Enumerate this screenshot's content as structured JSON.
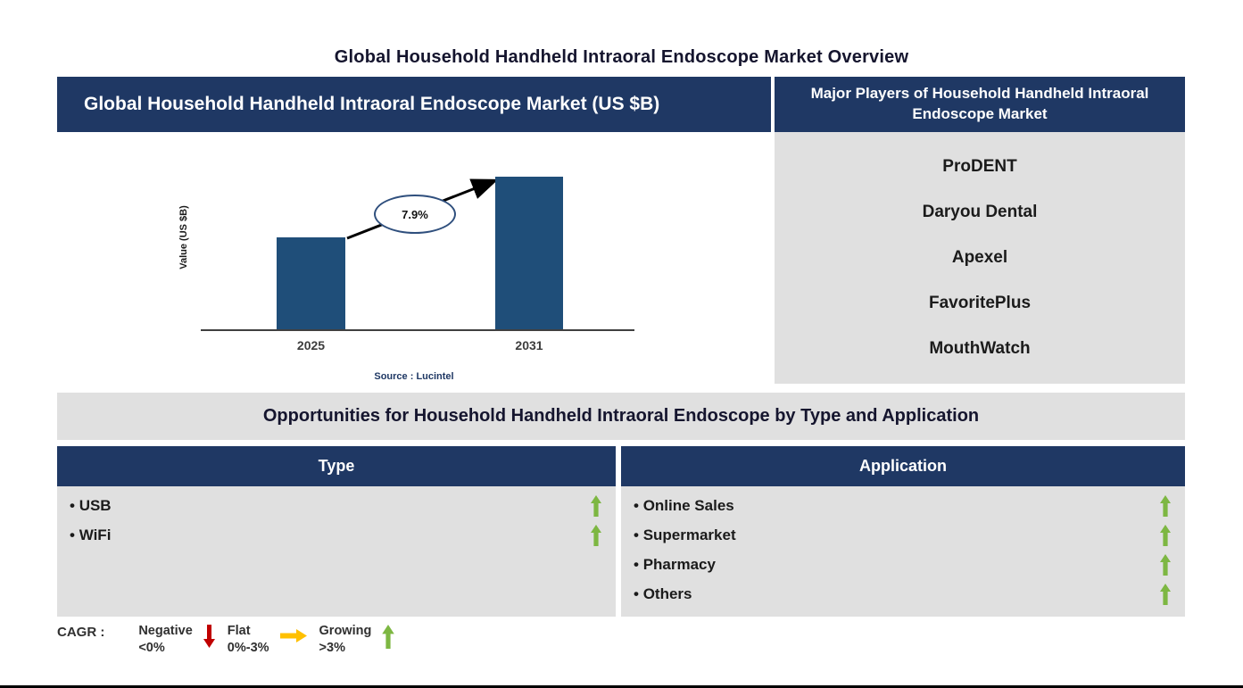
{
  "page": {
    "title": "Global Household Handheld Intraoral Endoscope Market Overview"
  },
  "market_chart": {
    "header": "Global Household Handheld Intraoral Endoscope Market (US $B)",
    "y_axis_label": "Value (US $B)",
    "source": "Source : Lucintel"
  },
  "chart_data": {
    "type": "bar",
    "title": "Global Household Handheld Intraoral Endoscope Market (US $B)",
    "categories": [
      "2025",
      "2031"
    ],
    "values_relative": [
      0.6,
      1.0
    ],
    "value_labels_shown": false,
    "ylabel": "Value (US $B)",
    "annotation": "7.9%",
    "annotation_meaning": "CAGR from 2025 to 2031",
    "bar_color": "#1F4E79",
    "grid": false,
    "legend": false
  },
  "major_players": {
    "header": "Major Players of Household Handheld Intraoral Endoscope Market",
    "items": [
      "ProDENT",
      "Daryou Dental",
      "Apexel",
      "FavoritePlus",
      "MouthWatch"
    ]
  },
  "opportunities": {
    "title": "Opportunities for Household Handheld Intraoral Endoscope by Type and Application",
    "type": {
      "header": "Type",
      "items": [
        {
          "label": "USB",
          "trend": "growing"
        },
        {
          "label": "WiFi",
          "trend": "growing"
        }
      ]
    },
    "application": {
      "header": "Application",
      "items": [
        {
          "label": "Online Sales",
          "trend": "growing"
        },
        {
          "label": "Supermarket",
          "trend": "growing"
        },
        {
          "label": "Pharmacy",
          "trend": "growing"
        },
        {
          "label": "Others",
          "trend": "growing"
        }
      ]
    }
  },
  "legend": {
    "prefix": "CAGR :",
    "negative_label": "Negative",
    "negative_range": "<0%",
    "flat_label": "Flat",
    "flat_range": "0%-3%",
    "growing_label": "Growing",
    "growing_range": ">3%"
  },
  "colors": {
    "navy": "#1F3864",
    "bar_blue": "#1F4E79",
    "panel_gray": "#E0E0E0",
    "green": "#7DB742",
    "red": "#C00000",
    "yellow": "#FFC000"
  }
}
